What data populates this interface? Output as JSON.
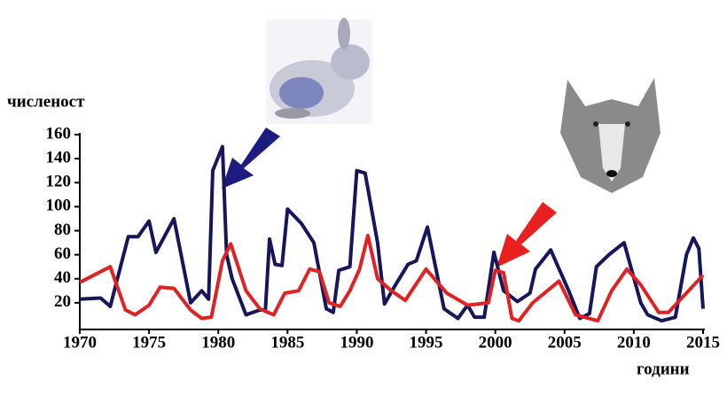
{
  "chart_data": {
    "type": "line",
    "ylabel": "численост",
    "xlabel": "години",
    "xlim": [
      1970,
      2015
    ],
    "xticks": [
      1970,
      1975,
      1980,
      1985,
      1990,
      1995,
      2000,
      2005,
      2010,
      2015
    ],
    "ylim": [
      0,
      160
    ],
    "yticks": [
      20,
      40,
      60,
      80,
      100,
      120,
      140,
      160
    ],
    "series": [
      {
        "color": "#16165c",
        "x": [
          1970,
          1971.5,
          1972.2,
          1973.5,
          1974.2,
          1975,
          1975.5,
          1976.8,
          1978,
          1978.8,
          1979.3,
          1979.6,
          1980.3,
          1980.6,
          1981,
          1982,
          1983,
          1983.4,
          1983.7,
          1984.1,
          1984.6,
          1985,
          1986,
          1986.9,
          1987.8,
          1988.3,
          1988.7,
          1989.5,
          1990,
          1990.6,
          1991.5,
          1992,
          1992.8,
          1993.7,
          1994.3,
          1995.1,
          1996.3,
          1997.3,
          1998,
          1998.5,
          1999.2,
          1999.9,
          2000.6,
          2001.6,
          2002.5,
          2002.9,
          2004,
          2005.3,
          2006.1,
          2006.8,
          2007.3,
          2008.2,
          2009.3,
          2010.5,
          2011,
          2012,
          2013,
          2013.8,
          2014.3,
          2014.7,
          2015
        ],
        "values": [
          23,
          24,
          17,
          75,
          75,
          88,
          62,
          90,
          20,
          30,
          23,
          130,
          150,
          60,
          40,
          10,
          14,
          14,
          73,
          52,
          51,
          98,
          86,
          70,
          15,
          12,
          47,
          50,
          130,
          128,
          70,
          19,
          35,
          52,
          55,
          83,
          15,
          7,
          18,
          8,
          8,
          62,
          30,
          21,
          28,
          48,
          64,
          30,
          7,
          11,
          50,
          60,
          70,
          20,
          10,
          5,
          8,
          60,
          74,
          65,
          15
        ]
      },
      {
        "color": "#e02222",
        "x": [
          1970,
          1972.2,
          1973.3,
          1974,
          1975,
          1975.8,
          1976.8,
          1978,
          1978.8,
          1979.5,
          1980.3,
          1980.9,
          1982,
          1983,
          1984,
          1984.8,
          1985.8,
          1986.6,
          1987.3,
          1988,
          1988.8,
          1989.5,
          1990.2,
          1990.8,
          1991.5,
          1992.5,
          1993.5,
          1995,
          1996.5,
          1998,
          1999.5,
          2000,
          2000.6,
          2001.2,
          2001.7,
          2002.7,
          2004.6,
          2005.8,
          2007.4,
          2008.4,
          2009.5,
          2010.5,
          2011.8,
          2012.5,
          2015
        ],
        "values": [
          37,
          50,
          14,
          10,
          18,
          33,
          32,
          14,
          7,
          8,
          55,
          69,
          30,
          15,
          10,
          28,
          30,
          48,
          46,
          20,
          17,
          30,
          48,
          76,
          40,
          30,
          22,
          48,
          28,
          18,
          20,
          47,
          45,
          7,
          5,
          20,
          38,
          10,
          5,
          30,
          48,
          35,
          12,
          12,
          43
        ]
      }
    ]
  }
}
